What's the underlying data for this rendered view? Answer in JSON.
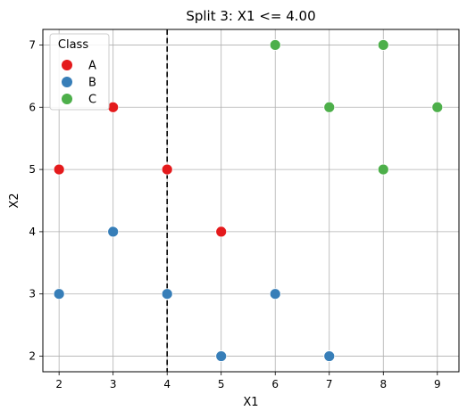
{
  "chart_data": {
    "type": "scatter",
    "title": "Split 3: X1 <= 4.00",
    "xlabel": "X1",
    "ylabel": "X2",
    "xlim": [
      1.7,
      9.4
    ],
    "ylim": [
      1.75,
      7.25
    ],
    "xticks": [
      2,
      3,
      4,
      5,
      6,
      7,
      8,
      9
    ],
    "yticks": [
      2,
      3,
      4,
      5,
      6,
      7
    ],
    "grid": true,
    "legend": {
      "title": "Class",
      "placement": "top-left"
    },
    "split_line": {
      "x": 4,
      "style": "dashed",
      "color": "#000000"
    },
    "series": [
      {
        "name": "A",
        "color": "#e41a1c",
        "points": [
          [
            2,
            5
          ],
          [
            3,
            6
          ],
          [
            4,
            5
          ],
          [
            5,
            4
          ]
        ]
      },
      {
        "name": "B",
        "color": "#377eb8",
        "points": [
          [
            2,
            3
          ],
          [
            3,
            4
          ],
          [
            4,
            3
          ],
          [
            5,
            2
          ],
          [
            6,
            3
          ],
          [
            7,
            2
          ]
        ]
      },
      {
        "name": "C",
        "color": "#4daf4a",
        "points": [
          [
            6,
            7
          ],
          [
            8,
            7
          ],
          [
            7,
            6
          ],
          [
            9,
            6
          ],
          [
            8,
            5
          ]
        ]
      }
    ]
  }
}
